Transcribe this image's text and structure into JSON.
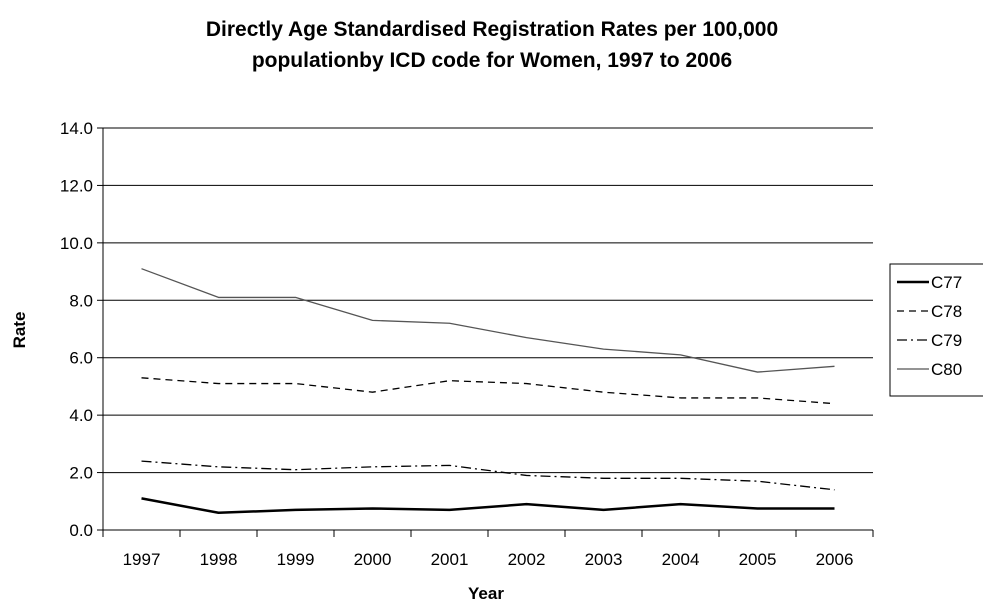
{
  "chart_data": {
    "type": "line",
    "title_line1": "Directly Age Standardised Registration Rates per 100,000",
    "title_line2": "populationby ICD code for Women, 1997 to 2006",
    "xlabel": "Year",
    "ylabel": "Rate",
    "ylim": [
      0,
      14
    ],
    "yticks": [
      "0.0",
      "2.0",
      "4.0",
      "6.0",
      "8.0",
      "10.0",
      "12.0",
      "14.0"
    ],
    "categories": [
      "1997",
      "1998",
      "1999",
      "2000",
      "2001",
      "2002",
      "2003",
      "2004",
      "2005",
      "2006"
    ],
    "grid": "horizontal",
    "legend_position": "right",
    "series": [
      {
        "name": "C77",
        "style": "solid-thick",
        "color": "#000000",
        "values": [
          1.1,
          0.6,
          0.7,
          0.75,
          0.7,
          0.9,
          0.7,
          0.9,
          0.75,
          0.75
        ]
      },
      {
        "name": "C78",
        "style": "dashed",
        "color": "#000000",
        "values": [
          5.3,
          5.1,
          5.1,
          4.8,
          5.2,
          5.1,
          4.8,
          4.6,
          4.6,
          4.4
        ]
      },
      {
        "name": "C79",
        "style": "dash-dot",
        "color": "#000000",
        "values": [
          2.4,
          2.2,
          2.1,
          2.2,
          2.25,
          1.9,
          1.8,
          1.8,
          1.7,
          1.4
        ]
      },
      {
        "name": "C80",
        "style": "solid-thin",
        "color": "#555555",
        "values": [
          9.1,
          8.1,
          8.1,
          7.3,
          7.2,
          6.7,
          6.3,
          6.1,
          5.5,
          5.7
        ]
      }
    ]
  }
}
